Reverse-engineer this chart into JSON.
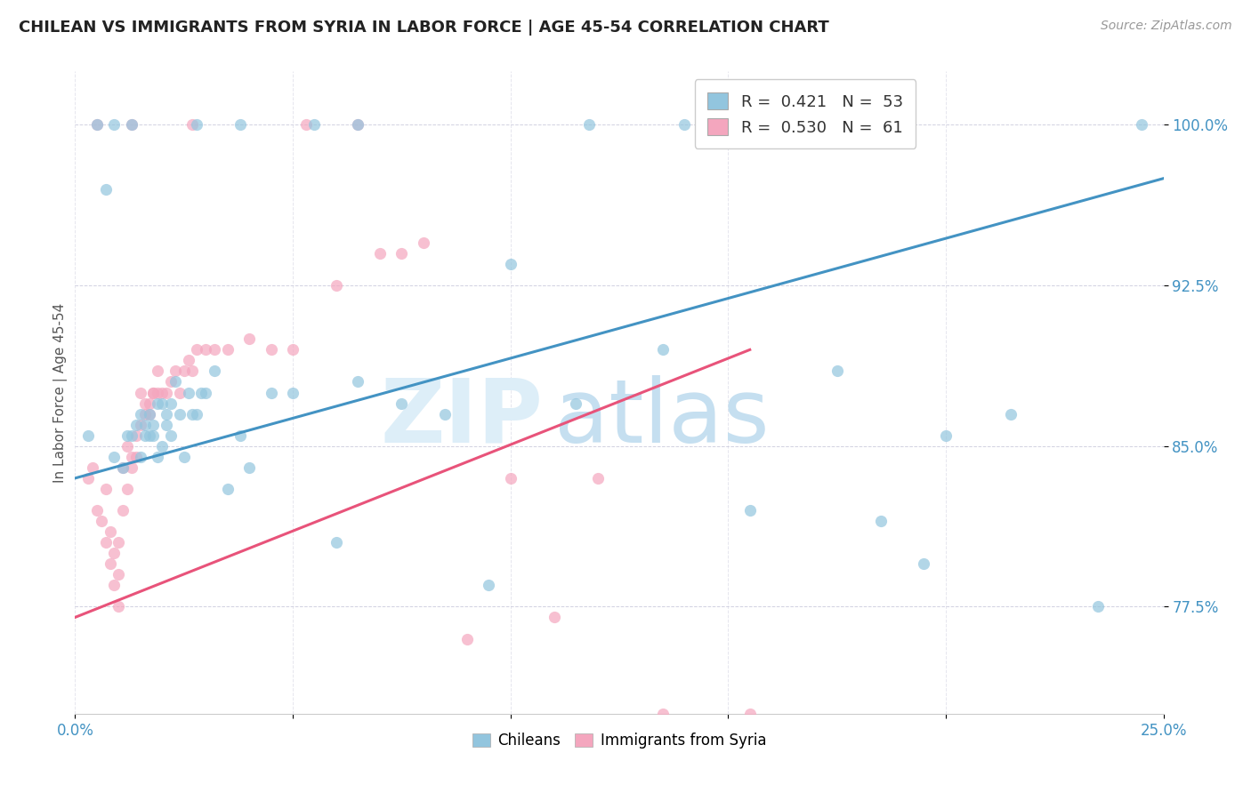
{
  "title": "CHILEAN VS IMMIGRANTS FROM SYRIA IN LABOR FORCE | AGE 45-54 CORRELATION CHART",
  "source": "Source: ZipAtlas.com",
  "ylabel": "In Labor Force | Age 45-54",
  "xlim": [
    0.0,
    0.25
  ],
  "ylim": [
    0.725,
    1.025
  ],
  "xticks": [
    0.0,
    0.05,
    0.1,
    0.15,
    0.2,
    0.25
  ],
  "xtick_labels": [
    "0.0%",
    "",
    "",
    "",
    "",
    "25.0%"
  ],
  "ytick_labels": [
    "77.5%",
    "85.0%",
    "92.5%",
    "100.0%"
  ],
  "yticks": [
    0.775,
    0.85,
    0.925,
    1.0
  ],
  "blue_color": "#92c5de",
  "pink_color": "#f4a6be",
  "blue_line_color": "#4393c3",
  "pink_line_color": "#e8537a",
  "legend_R_blue": "0.421",
  "legend_N_blue": "53",
  "legend_R_pink": "0.530",
  "legend_N_pink": "61",
  "blue_line_x0": 0.0,
  "blue_line_y0": 0.835,
  "blue_line_x1": 0.25,
  "blue_line_y1": 0.975,
  "pink_line_x0": 0.0,
  "pink_line_y0": 0.77,
  "pink_line_x1": 0.155,
  "pink_line_y1": 0.895,
  "blue_scatter_x": [
    0.003,
    0.007,
    0.009,
    0.011,
    0.012,
    0.013,
    0.014,
    0.015,
    0.015,
    0.016,
    0.016,
    0.017,
    0.017,
    0.018,
    0.018,
    0.019,
    0.019,
    0.02,
    0.02,
    0.021,
    0.021,
    0.022,
    0.022,
    0.023,
    0.024,
    0.025,
    0.026,
    0.027,
    0.028,
    0.029,
    0.03,
    0.032,
    0.035,
    0.038,
    0.04,
    0.045,
    0.05,
    0.06,
    0.065,
    0.075,
    0.085,
    0.095,
    0.1,
    0.115,
    0.135,
    0.155,
    0.175,
    0.195,
    0.215,
    0.235,
    0.245,
    0.185,
    0.2
  ],
  "blue_scatter_y": [
    0.855,
    0.97,
    0.845,
    0.84,
    0.855,
    0.855,
    0.86,
    0.845,
    0.865,
    0.855,
    0.86,
    0.855,
    0.865,
    0.86,
    0.855,
    0.845,
    0.87,
    0.85,
    0.87,
    0.86,
    0.865,
    0.855,
    0.87,
    0.88,
    0.865,
    0.845,
    0.875,
    0.865,
    0.865,
    0.875,
    0.875,
    0.885,
    0.83,
    0.855,
    0.84,
    0.875,
    0.875,
    0.805,
    0.88,
    0.87,
    0.865,
    0.785,
    0.935,
    0.87,
    0.895,
    0.82,
    0.885,
    0.795,
    0.865,
    0.775,
    1.0,
    0.815,
    0.855
  ],
  "pink_scatter_x": [
    0.003,
    0.004,
    0.005,
    0.006,
    0.007,
    0.007,
    0.008,
    0.008,
    0.009,
    0.009,
    0.01,
    0.01,
    0.01,
    0.011,
    0.011,
    0.012,
    0.012,
    0.013,
    0.013,
    0.014,
    0.014,
    0.015,
    0.015,
    0.016,
    0.016,
    0.017,
    0.017,
    0.018,
    0.018,
    0.019,
    0.019,
    0.02,
    0.021,
    0.022,
    0.023,
    0.024,
    0.025,
    0.026,
    0.027,
    0.028,
    0.03,
    0.032,
    0.035,
    0.04,
    0.045,
    0.05,
    0.06,
    0.07,
    0.075,
    0.08,
    0.09,
    0.1,
    0.11,
    0.12,
    0.135,
    0.155,
    0.005,
    0.013,
    0.027,
    0.053,
    0.065
  ],
  "pink_scatter_y": [
    0.835,
    0.84,
    0.82,
    0.815,
    0.83,
    0.805,
    0.81,
    0.795,
    0.8,
    0.785,
    0.805,
    0.79,
    0.775,
    0.84,
    0.82,
    0.85,
    0.83,
    0.845,
    0.84,
    0.855,
    0.845,
    0.875,
    0.86,
    0.87,
    0.865,
    0.865,
    0.87,
    0.875,
    0.875,
    0.885,
    0.875,
    0.875,
    0.875,
    0.88,
    0.885,
    0.875,
    0.885,
    0.89,
    0.885,
    0.895,
    0.895,
    0.895,
    0.895,
    0.9,
    0.895,
    0.895,
    0.925,
    0.94,
    0.94,
    0.945,
    0.76,
    0.835,
    0.77,
    0.835,
    0.725,
    0.725,
    1.0,
    1.0,
    1.0,
    1.0,
    1.0
  ],
  "top_blue_x": [
    0.005,
    0.009,
    0.013,
    0.028,
    0.038,
    0.055,
    0.065,
    0.118,
    0.14
  ],
  "top_blue_y": [
    1.0,
    1.0,
    1.0,
    1.0,
    1.0,
    1.0,
    1.0,
    1.0,
    1.0
  ]
}
